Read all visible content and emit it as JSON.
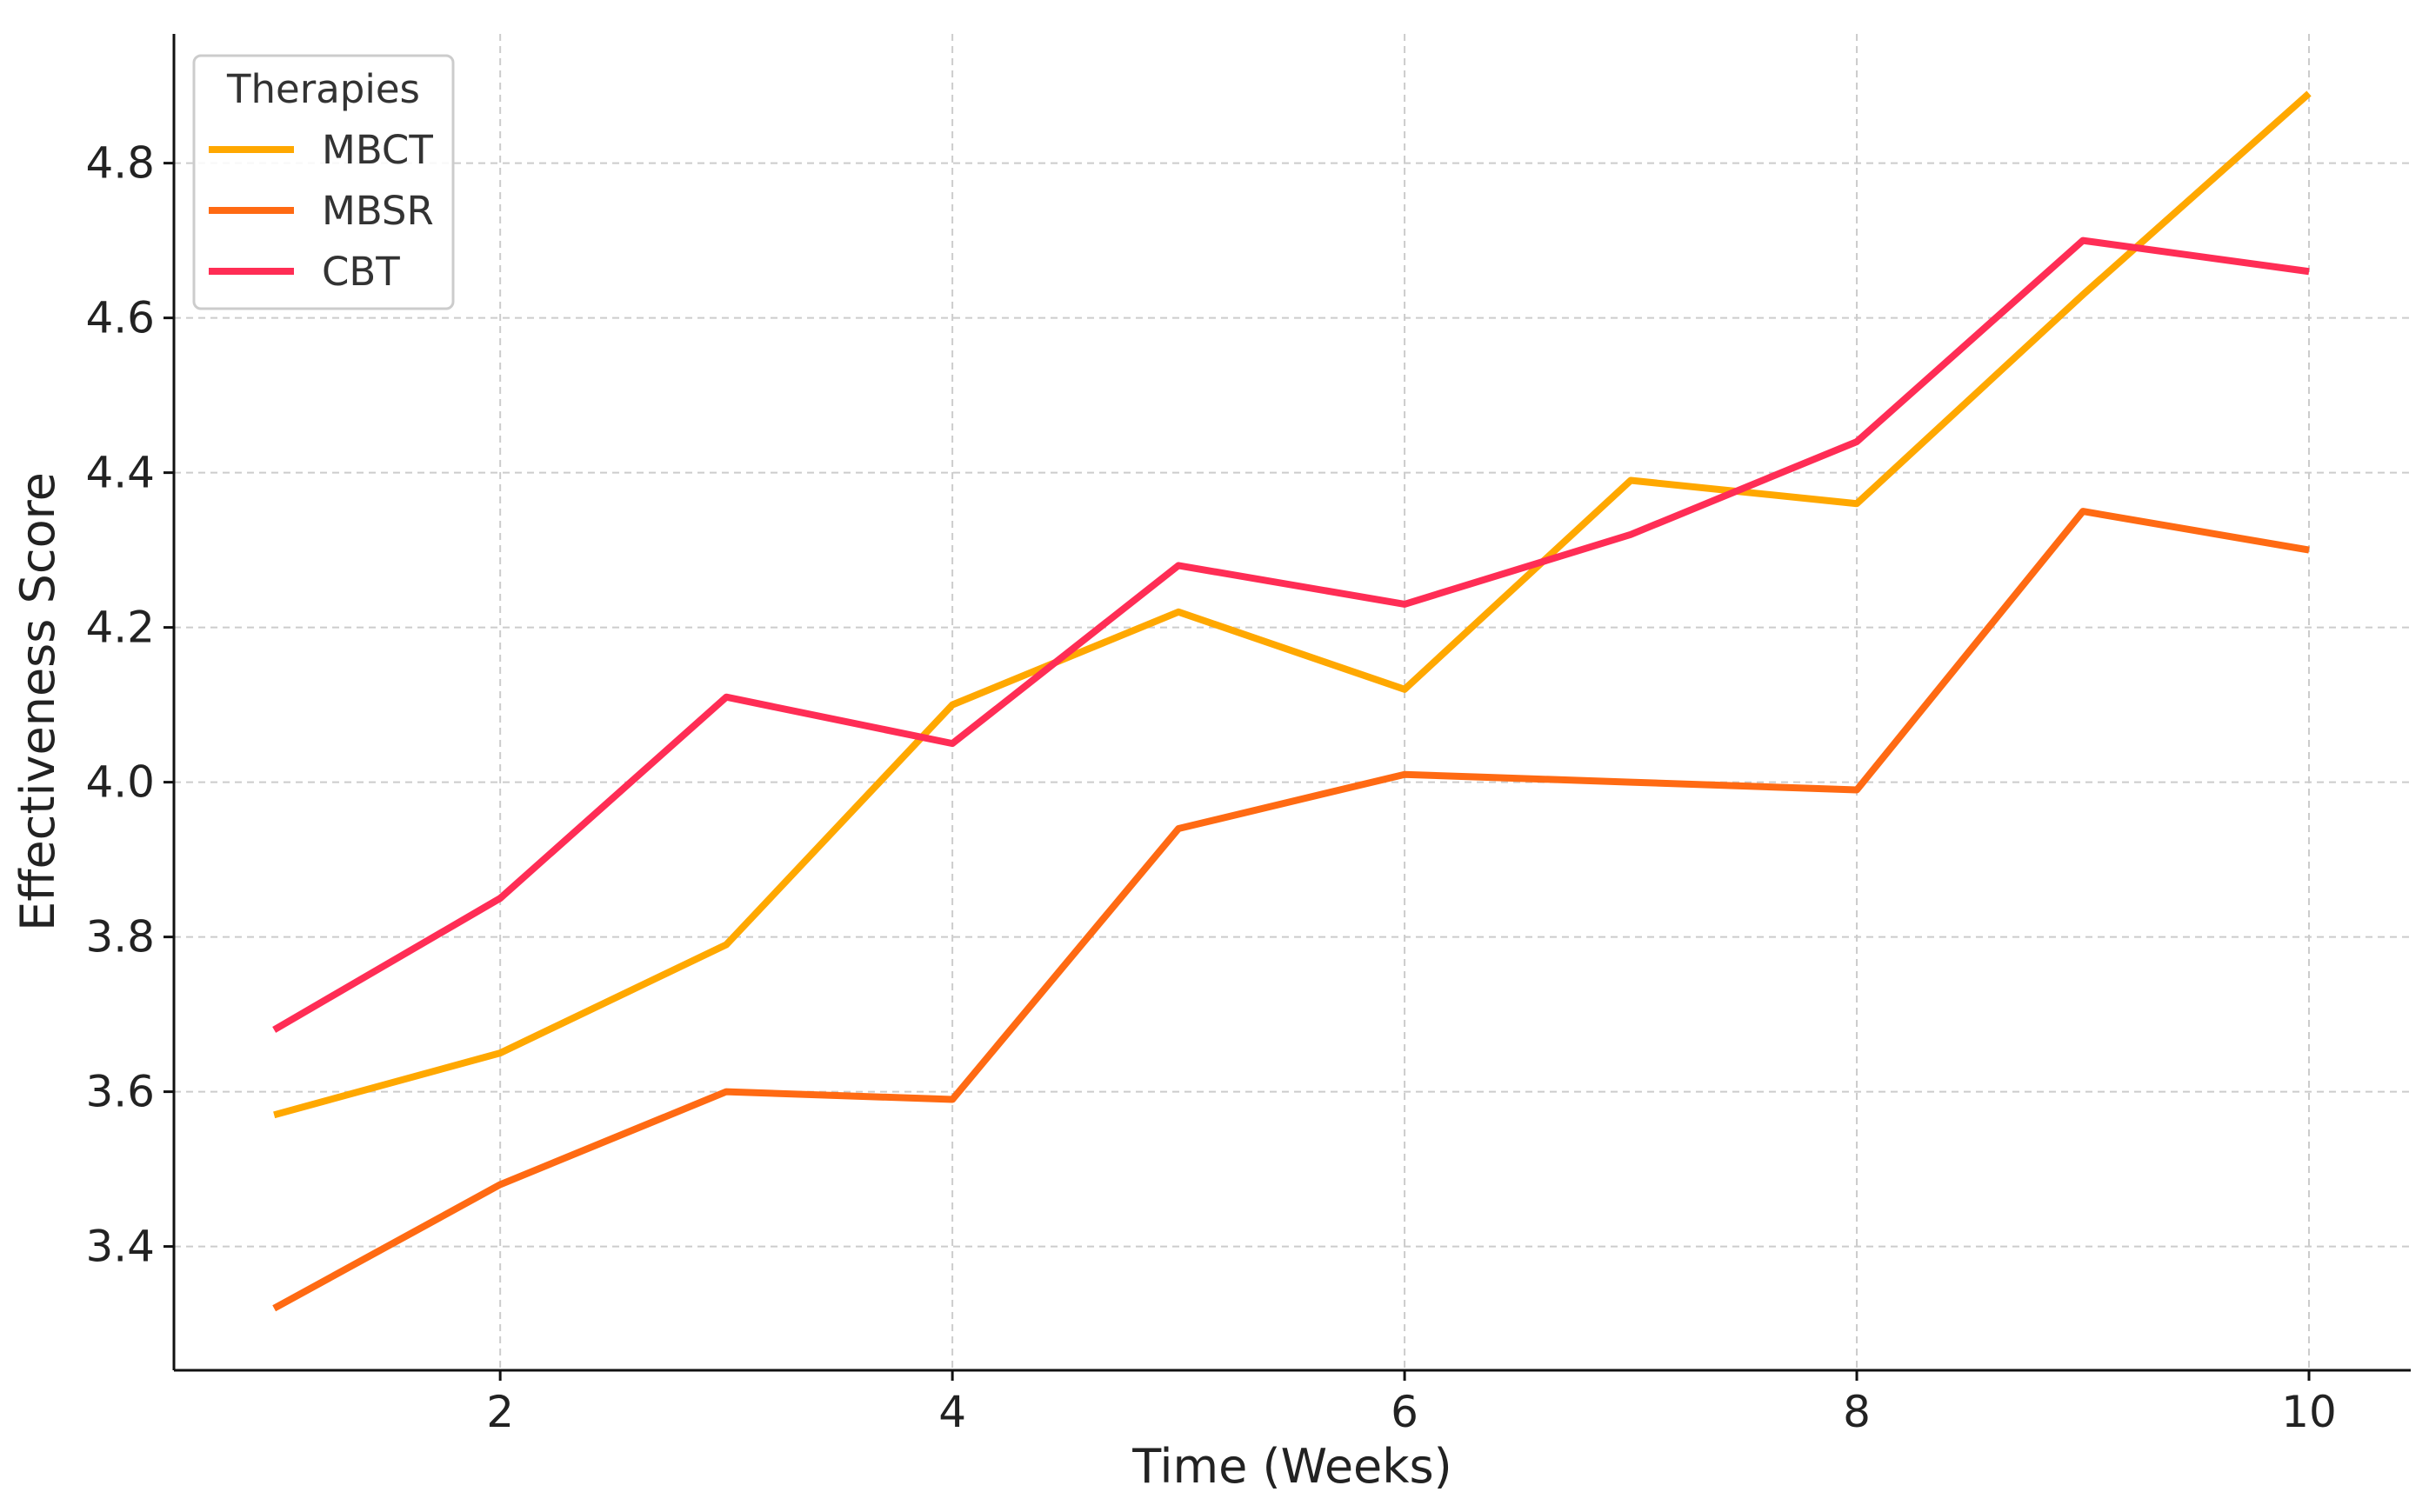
{
  "chart_data": {
    "type": "line",
    "title": "",
    "xlabel": "Time (Weeks)",
    "ylabel": "Effectiveness Score",
    "x": [
      1,
      2,
      3,
      4,
      5,
      6,
      7,
      8,
      9,
      10
    ],
    "xlim": [
      0.557,
      10.45
    ],
    "ylim": [
      3.24,
      4.967
    ],
    "xticks": [
      2,
      4,
      6,
      8,
      10
    ],
    "yticks": [
      3.4,
      3.6,
      3.8,
      4.0,
      4.2,
      4.4,
      4.6,
      4.8
    ],
    "xtick_labels": [
      "2",
      "4",
      "6",
      "8",
      "10"
    ],
    "ytick_labels": [
      "3.4",
      "3.6",
      "3.8",
      "4.0",
      "4.2",
      "4.4",
      "4.6",
      "4.8"
    ],
    "grid": true,
    "legend": {
      "title": "Therapies",
      "placement": "top-left"
    },
    "series": [
      {
        "name": "MBCT",
        "color": "#FFA800",
        "values": [
          3.57,
          3.65,
          3.79,
          4.1,
          4.22,
          4.12,
          4.39,
          4.36,
          4.63,
          4.89
        ]
      },
      {
        "name": "MBSR",
        "color": "#FF6A13",
        "values": [
          3.32,
          3.48,
          3.6,
          3.59,
          3.94,
          4.01,
          4.0,
          3.99,
          4.35,
          4.3
        ]
      },
      {
        "name": "CBT",
        "color": "#FF2D55",
        "values": [
          3.68,
          3.85,
          4.11,
          4.05,
          4.28,
          4.23,
          4.32,
          4.44,
          4.7,
          4.66
        ]
      }
    ]
  }
}
